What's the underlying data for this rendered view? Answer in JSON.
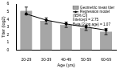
{
  "chart_data": {
    "type": "bar",
    "x_label": "Age (yrs)",
    "y_label": "Titer (log2)",
    "categories": [
      "20-29",
      "30-39",
      "40-49",
      "50-59",
      "60-69"
    ],
    "series": [
      {
        "name": "Geometric mean titer",
        "type": "bar",
        "color": "#a6a6a6",
        "values": [
          5.1,
          3.8,
          3.3,
          2.9,
          2.4
        ],
        "errors": [
          0.5,
          0.4,
          0.35,
          0.35,
          0.4
        ]
      },
      {
        "name": "Regression model",
        "type": "line",
        "color": "#000000",
        "marker": "circle",
        "values": [
          4.7,
          3.9,
          3.4,
          3.0,
          2.6
        ]
      }
    ],
    "annotations": [
      "(95% CI)",
      "Intercept = 2.75",
      "Beta (2 log age) = 1.07"
    ],
    "ylim": [
      0,
      6
    ],
    "yticks": [
      0,
      1,
      2,
      3,
      4,
      5,
      6
    ],
    "legend": "top-right",
    "grid": false
  }
}
